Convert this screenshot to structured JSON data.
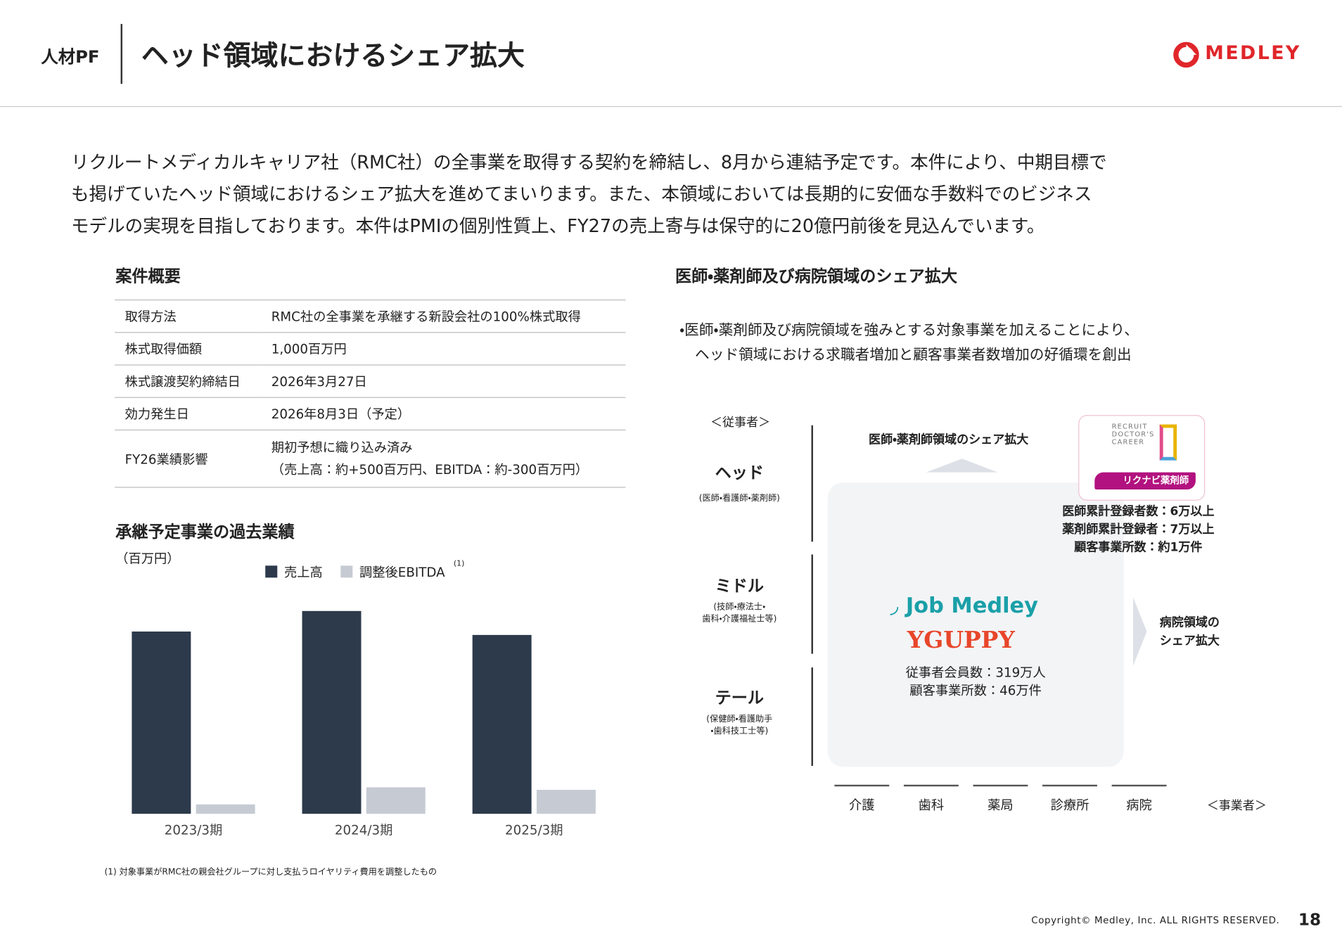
{
  "header": {
    "section": "人材PF",
    "title": "ヘッド領域におけるシェア拡大",
    "logo": "MEDLEY"
  },
  "intro": [
    "リクルートメディカルキャリア社（RMC社）の全事業を取得する契約を締結し、8月から連結予定です。本件により、中期目標で",
    "も掲げていたヘッド領域におけるシェア拡大を進めてまいります。また、本領域においては長期的に安価な手数料でのビジネス",
    "モデルの実現を目指しております。本件はPMIの個別性質上、FY27の売上寄与は保守的に20億円前後を見込んでいます。"
  ],
  "deal": {
    "heading": "案件概要",
    "rows": [
      [
        "取得方法",
        "RMC社の全事業を承継する新設会社の100%株式取得"
      ],
      [
        "株式取得価額",
        "1,000百万円"
      ],
      [
        "株式譲渡契約締結日",
        "2026年3月27日"
      ],
      [
        "効力発生日",
        "2026年8月3日（予定）"
      ],
      [
        "FY26業績影響",
        "期初予想に織り込み済み\n（売上高：約+500百万円、EBITDA：約-300百万円）"
      ]
    ]
  },
  "chart_data": {
    "type": "bar",
    "title": "承継予定事業の過去業績",
    "unit": "（百万円）",
    "categories": [
      "2023/3期",
      "2024/3期",
      "2025/3期"
    ],
    "series": [
      {
        "name": "売上高",
        "color": "#2c3a4b",
        "values": [
          2130,
          2370,
          2090
        ]
      },
      {
        "name": "調整後EBITDA",
        "color": "#c6cbd3",
        "values": [
          110,
          310,
          280
        ]
      }
    ],
    "legend_note": "(1)",
    "footnote": "(1) 対象事業がRMC社の親会社グループに対し支払うロイヤリティ費用を調整したもの"
  },
  "diagram": {
    "heading": "医師・薬剤師及び病院領域のシェア拡大",
    "bullet": [
      "医師・薬剤師及び病院領域を強みとする対象事業を加えることにより、",
      "ヘッド領域における求職者増加と顧客事業者数増加の好循環を創出"
    ],
    "y_axis_label": "＜従事者＞",
    "tiers": [
      {
        "name": "ヘッド",
        "desc": "(医師・看護師・薬剤師)"
      },
      {
        "name": "ミドル",
        "desc": "(技師・療法士・\n歯科・介護福祉士等)"
      },
      {
        "name": "テール",
        "desc": "(保健師・看護助手\n・歯科技工士等)"
      }
    ],
    "up_label": "医師・薬剤師領域のシェア拡大",
    "right_label": "病院領域の\nシェア拡大",
    "acquired_logos": [
      "RECRUIT DOCTOR'S CAREER",
      "リクナビ薬剤師"
    ],
    "acquired_stats": [
      "医師累計登録者数：6万以上",
      "薬剤師累計登録者：7万以上",
      "顧客事業所数：約1万件"
    ],
    "medley_logos": [
      "Job Medley",
      "GUPPY"
    ],
    "medley_stats": [
      "従事者会員数：319万人",
      "顧客事業所数：46万件"
    ],
    "x_categories": [
      "介護",
      "歯科",
      "薬局",
      "診療所",
      "病院"
    ],
    "x_axis_label": "＜事業者＞"
  },
  "footer": {
    "copyright": "Copyright© Medley, Inc. ALL RIGHTS RESERVED.",
    "page": "18"
  }
}
